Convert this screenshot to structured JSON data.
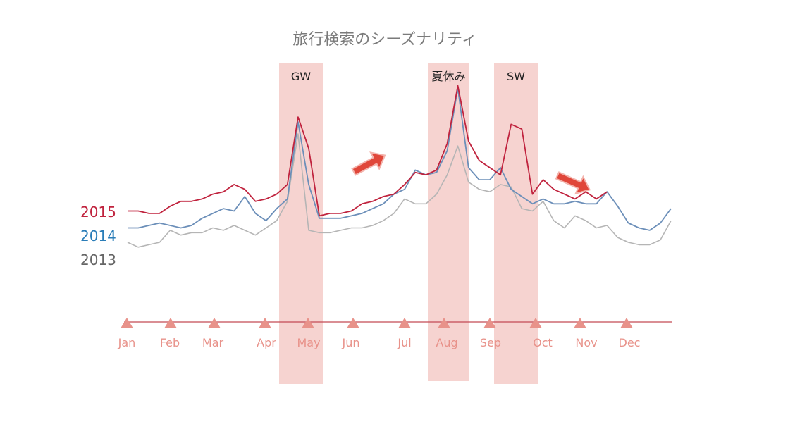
{
  "chart_data": {
    "type": "line",
    "title": "旅行検索のシーズナリティ",
    "xlabel": "",
    "ylabel": "",
    "months": [
      "Jan",
      "Feb",
      "Mar",
      "Apr",
      "May",
      "Jun",
      "Jul",
      "Aug",
      "Sep",
      "Oct",
      "Nov",
      "Dec"
    ],
    "bands": [
      {
        "label": "GW",
        "from": "Apr",
        "to": "May"
      },
      {
        "label": "夏休み",
        "from": "Aug",
        "to": "Aug"
      },
      {
        "label": "SW",
        "from": "Sep",
        "to": "Oct"
      }
    ],
    "trend_arrows": [
      "up",
      "down"
    ],
    "series": [
      {
        "name": "2015",
        "color": "#c0233e",
        "values": [
          44,
          44,
          43,
          43,
          46,
          48,
          48,
          49,
          51,
          52,
          55,
          53,
          48,
          49,
          51,
          55,
          83,
          70,
          42,
          43,
          43,
          44,
          47,
          48,
          50,
          51,
          55,
          60,
          59,
          61,
          72,
          96,
          73,
          65,
          62,
          59,
          80,
          78,
          51,
          57,
          53,
          51,
          49,
          52,
          49,
          52
        ]
      },
      {
        "name": "2014",
        "color": "#6c8fb9",
        "values": [
          37,
          37,
          38,
          39,
          38,
          37,
          38,
          41,
          43,
          45,
          44,
          50,
          43,
          40,
          45,
          49,
          81,
          55,
          41,
          41,
          41,
          42,
          43,
          45,
          47,
          51,
          53,
          61,
          59,
          60,
          69,
          95,
          62,
          57,
          57,
          62,
          53,
          50,
          47,
          49,
          47,
          47,
          48,
          47,
          47,
          52,
          46,
          39,
          37,
          36,
          39,
          45
        ]
      },
      {
        "name": "2013",
        "color": "#b5b5b5",
        "values": [
          31,
          29,
          30,
          31,
          36,
          34,
          35,
          35,
          37,
          36,
          38,
          36,
          34,
          37,
          40,
          48,
          76,
          36,
          35,
          35,
          36,
          37,
          37,
          38,
          40,
          43,
          49,
          47,
          47,
          51,
          59,
          71,
          56,
          53,
          52,
          55,
          54,
          45,
          44,
          48,
          40,
          37,
          42,
          40,
          37,
          38,
          33,
          31,
          30,
          30,
          32,
          40
        ]
      }
    ]
  }
}
